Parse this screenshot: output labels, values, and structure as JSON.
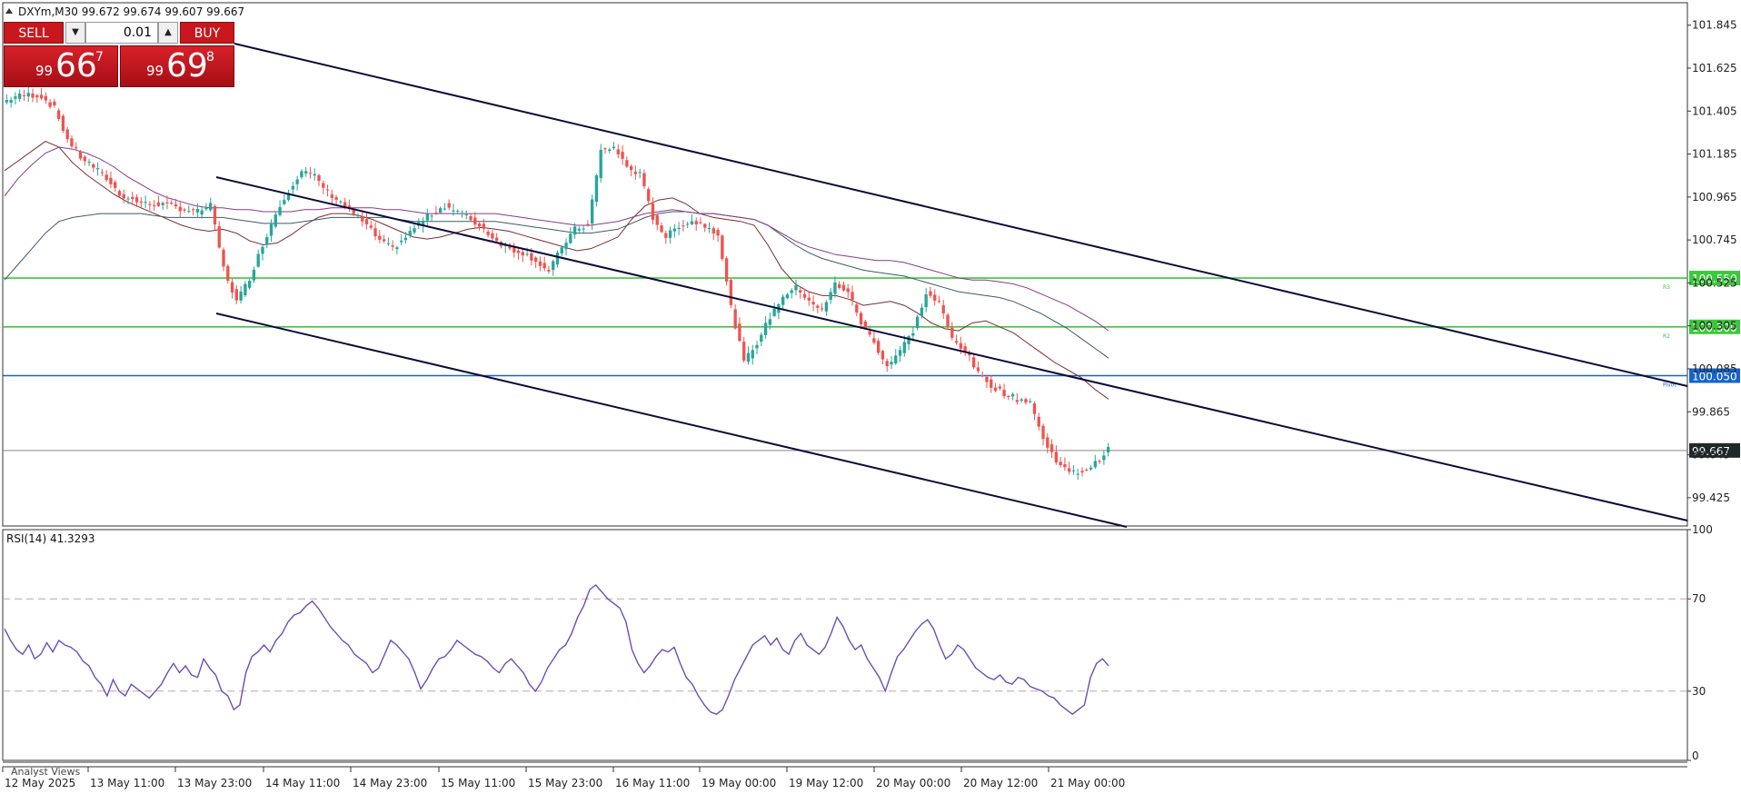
{
  "header": {
    "symbol_line": "DXYm,M30  99.672 99.674 99.607 99.667",
    "rsi_label": "RSI(14) 41.3293",
    "analyst_views": "Analyst Views"
  },
  "one_click": {
    "sell_label": "SELL",
    "buy_label": "BUY",
    "volume": "0.01",
    "sell_price": {
      "prefix": "99",
      "big": "66",
      "sup": "7"
    },
    "buy_price": {
      "prefix": "99",
      "big": "69",
      "sup": "8"
    }
  },
  "colors": {
    "bull": "#26a69a",
    "bear": "#ef5350",
    "channel": "#0a0a3c",
    "level_green": "#3cc83c",
    "level_blue": "#1464c8",
    "rsi_line": "#6a4fb5",
    "ma_fast": "#7a2d2d",
    "ma_slow": "#3d5a6b",
    "ma_slowest": "#8a3a8a"
  },
  "chart_data": [
    {
      "type": "candlestick",
      "symbol": "DXYm",
      "timeframe": "M30",
      "ylim": [
        99.28,
        101.96
      ],
      "yticks": [
        "101.845",
        "101.625",
        "101.405",
        "101.185",
        "100.965",
        "100.745",
        "100.525",
        "100.305",
        "100.085",
        "99.865",
        "99.645",
        "99.425"
      ],
      "xticks": [
        "12 May 2025",
        "13 May 11:00",
        "13 May 23:00",
        "14 May 11:00",
        "14 May 23:00",
        "15 May 11:00",
        "15 May 23:00",
        "16 May 11:00",
        "19 May 00:00",
        "19 May 12:00",
        "20 May 00:00",
        "20 May 12:00",
        "21 May 00:00"
      ],
      "close_path": [
        101.45,
        101.48,
        101.49,
        101.48,
        101.42,
        101.26,
        101.17,
        101.12,
        101.06,
        100.98,
        100.95,
        100.93,
        100.93,
        100.92,
        100.9,
        100.89,
        100.92,
        100.6,
        100.43,
        100.55,
        100.72,
        100.88,
        101.0,
        101.1,
        101.07,
        100.99,
        100.94,
        100.88,
        100.82,
        100.74,
        100.7,
        100.76,
        100.83,
        100.88,
        100.92,
        100.89,
        100.85,
        100.8,
        100.74,
        100.7,
        100.68,
        100.64,
        100.58,
        100.71,
        100.8,
        100.82,
        101.2,
        101.22,
        101.12,
        101.08,
        100.86,
        100.76,
        100.82,
        100.84,
        100.82,
        100.78,
        100.4,
        100.12,
        100.22,
        100.35,
        100.46,
        100.5,
        100.44,
        100.38,
        100.52,
        100.48,
        100.32,
        100.22,
        100.1,
        100.18,
        100.28,
        100.47,
        100.42,
        100.24,
        100.18,
        100.06,
        100.0,
        99.96,
        99.93,
        99.92,
        99.72,
        99.62,
        99.55,
        99.56,
        99.6,
        99.67
      ],
      "ma_fast": [
        101.1,
        101.15,
        101.2,
        101.25,
        101.22,
        101.14,
        101.08,
        101.03,
        100.98,
        100.94,
        100.91,
        100.88,
        100.85,
        100.82,
        100.8,
        100.79,
        100.8,
        100.78,
        100.74,
        100.72,
        100.73,
        100.77,
        100.82,
        100.86,
        100.88,
        100.88,
        100.87,
        100.85,
        100.82,
        100.79,
        100.76,
        100.75,
        100.76,
        100.78,
        100.8,
        100.81,
        100.8,
        100.79,
        100.77,
        100.75,
        100.73,
        100.71,
        100.69,
        100.7,
        100.73,
        100.76,
        100.85,
        100.92,
        100.95,
        100.96,
        100.93,
        100.88,
        100.86,
        100.85,
        100.84,
        100.82,
        100.72,
        100.6,
        100.52,
        100.48,
        100.46,
        100.46,
        100.44,
        100.41,
        100.42,
        100.43,
        100.41,
        100.37,
        100.32,
        100.29,
        100.28,
        100.32,
        100.33,
        100.3,
        100.27,
        100.22,
        100.17,
        100.12,
        100.08,
        100.04,
        99.98,
        99.93
      ],
      "ma_slow": [
        100.54,
        100.62,
        100.7,
        100.78,
        100.84,
        100.86,
        100.87,
        100.88,
        100.88,
        100.88,
        100.88,
        100.87,
        100.86,
        100.86,
        100.86,
        100.86,
        100.86,
        100.85,
        100.84,
        100.83,
        100.83,
        100.83,
        100.84,
        100.85,
        100.86,
        100.86,
        100.86,
        100.86,
        100.86,
        100.85,
        100.84,
        100.84,
        100.84,
        100.84,
        100.84,
        100.84,
        100.84,
        100.83,
        100.82,
        100.81,
        100.8,
        100.79,
        100.78,
        100.78,
        100.79,
        100.8,
        100.83,
        100.86,
        100.88,
        100.89,
        100.89,
        100.88,
        100.88,
        100.87,
        100.86,
        100.85,
        100.82,
        100.77,
        100.72,
        100.68,
        100.65,
        100.63,
        100.61,
        100.59,
        100.58,
        100.57,
        100.56,
        100.54,
        100.52,
        100.5,
        100.48,
        100.47,
        100.46,
        100.45,
        100.43,
        100.4,
        100.37,
        100.33,
        100.29,
        100.24,
        100.19,
        100.14
      ],
      "ma_slowest": [
        100.97,
        101.06,
        101.13,
        101.19,
        101.22,
        101.21,
        101.19,
        101.16,
        101.12,
        101.07,
        101.03,
        100.99,
        100.96,
        100.94,
        100.92,
        100.91,
        100.91,
        100.9,
        100.9,
        100.89,
        100.89,
        100.89,
        100.9,
        100.9,
        100.91,
        100.91,
        100.91,
        100.91,
        100.9,
        100.9,
        100.89,
        100.88,
        100.88,
        100.88,
        100.88,
        100.88,
        100.88,
        100.87,
        100.86,
        100.85,
        100.84,
        100.83,
        100.82,
        100.82,
        100.83,
        100.84,
        100.86,
        100.88,
        100.89,
        100.9,
        100.89,
        100.88,
        100.88,
        100.87,
        100.86,
        100.85,
        100.82,
        100.78,
        100.74,
        100.71,
        100.69,
        100.67,
        100.66,
        100.65,
        100.64,
        100.64,
        100.63,
        100.61,
        100.59,
        100.57,
        100.55,
        100.54,
        100.54,
        100.53,
        100.52,
        100.5,
        100.47,
        100.44,
        100.41,
        100.37,
        100.33,
        100.28
      ],
      "levels": [
        {
          "value": 100.55,
          "label": "100.550",
          "tag": "R3",
          "color": "#3cc83c"
        },
        {
          "value": 100.3,
          "label": "100.300",
          "tag": "R2",
          "color": "#3cc83c"
        },
        {
          "value": 100.05,
          "label": "100.050",
          "tag": "Pivot",
          "color": "#1464c8"
        }
      ],
      "current_price": {
        "value": 99.667,
        "label": "99.667"
      }
    },
    {
      "type": "line",
      "name": "RSI(14)",
      "ylim": [
        0,
        100
      ],
      "yticks": [
        "100",
        "70",
        "30",
        "0"
      ],
      "reference_lines": [
        70,
        30
      ],
      "values": [
        57,
        52,
        48,
        46,
        50,
        44,
        46,
        51,
        47,
        52,
        50,
        49,
        47,
        43,
        41,
        36,
        33,
        28,
        35,
        30,
        28,
        33,
        31,
        29,
        27,
        30,
        33,
        38,
        42,
        38,
        41,
        37,
        36,
        44,
        40,
        37,
        30,
        28,
        22,
        24,
        38,
        45,
        47,
        50,
        47,
        52,
        55,
        60,
        63,
        64,
        67,
        69,
        66,
        62,
        58,
        55,
        52,
        50,
        46,
        44,
        42,
        38,
        40,
        46,
        52,
        50,
        47,
        44,
        38,
        31,
        35,
        40,
        44,
        45,
        48,
        52,
        50,
        48,
        46,
        45,
        43,
        40,
        38,
        42,
        44,
        41,
        38,
        33,
        30,
        34,
        40,
        44,
        48,
        50,
        55,
        62,
        67,
        74,
        76,
        73,
        70,
        68,
        66,
        60,
        48,
        42,
        38,
        41,
        45,
        48,
        47,
        49,
        42,
        36,
        33,
        28,
        24,
        21,
        20,
        22,
        28,
        35,
        40,
        45,
        50,
        52,
        54,
        50,
        53,
        48,
        46,
        52,
        55,
        50,
        48,
        46,
        49,
        55,
        62,
        58,
        52,
        48,
        50,
        44,
        40,
        36,
        30,
        38,
        45,
        48,
        52,
        56,
        59,
        61,
        57,
        50,
        44,
        46,
        50,
        48,
        44,
        40,
        38,
        36,
        35,
        37,
        34,
        33,
        36,
        35,
        32,
        31,
        30,
        28,
        27,
        24,
        22,
        20,
        22,
        24,
        36,
        42,
        44,
        41
      ]
    }
  ]
}
